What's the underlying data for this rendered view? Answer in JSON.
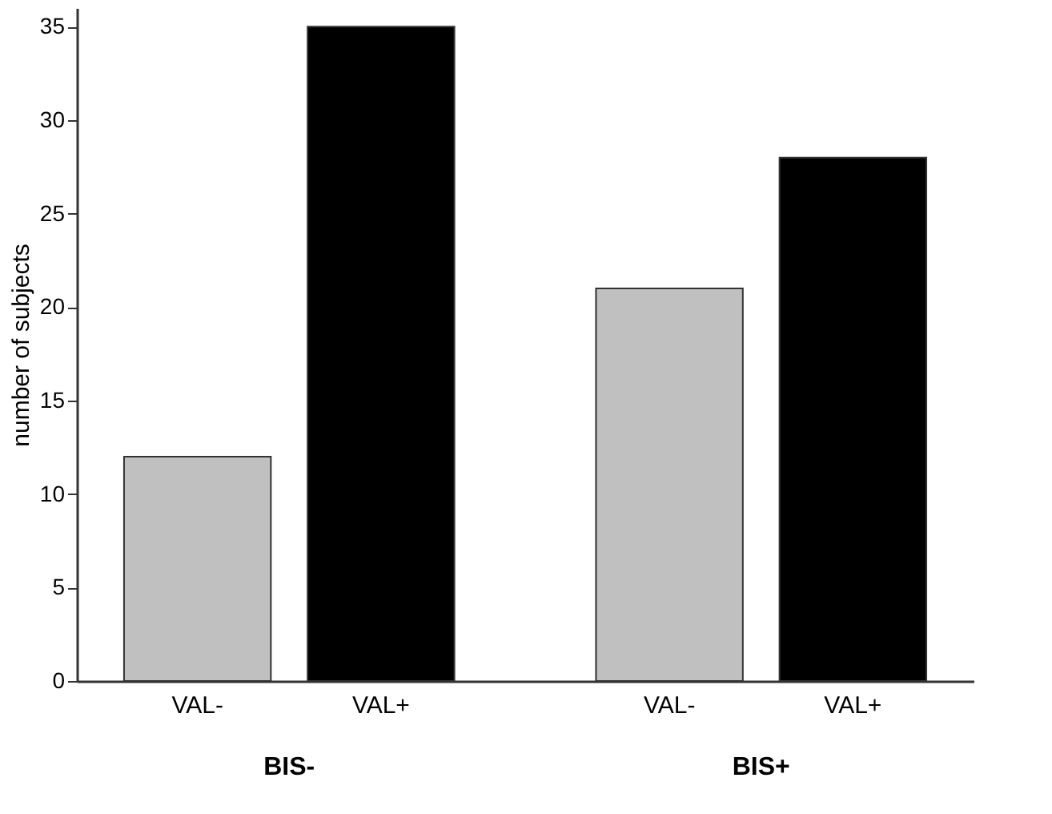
{
  "chart_data": {
    "type": "bar",
    "ylabel": "number of subjects",
    "categories": [
      "BIS-",
      "BIS+"
    ],
    "series": [
      {
        "name": "VAL-",
        "color": "#c0c0c0",
        "values": [
          12,
          21
        ]
      },
      {
        "name": "VAL+",
        "color": "#000000",
        "values": [
          35,
          28
        ]
      }
    ],
    "ylim": [
      0,
      36
    ],
    "yticks": [
      0,
      5,
      10,
      15,
      20,
      25,
      30,
      35
    ],
    "grid": false,
    "legend": false
  }
}
